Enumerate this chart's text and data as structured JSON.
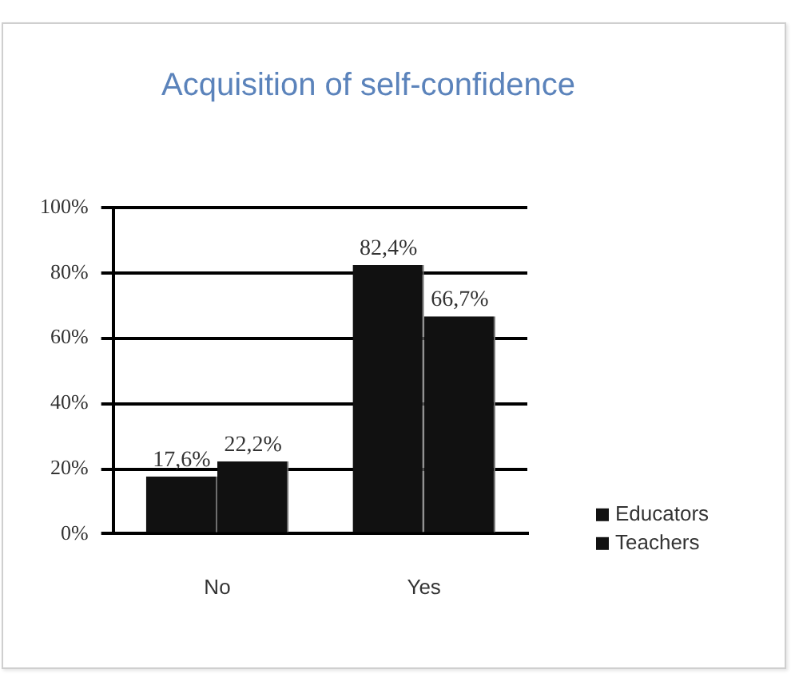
{
  "chart_data": {
    "type": "bar",
    "title": "Acquisition of self-confidence",
    "categories": [
      "No",
      "Yes"
    ],
    "series": [
      {
        "name": "Educators",
        "color": "#111111",
        "values": [
          17.6,
          82.4
        ],
        "value_labels": [
          "17,6%",
          "82,4%"
        ]
      },
      {
        "name": "Teachers",
        "color": "#111111",
        "values": [
          22.2,
          66.7
        ],
        "value_labels": [
          "22,2%",
          "66,7%"
        ]
      }
    ],
    "ylim": [
      0,
      100
    ],
    "yticks": [
      {
        "value": 0,
        "label": "0%"
      },
      {
        "value": 20,
        "label": "20%"
      },
      {
        "value": 40,
        "label": "40%"
      },
      {
        "value": 60,
        "label": "60%"
      },
      {
        "value": 80,
        "label": "80%"
      },
      {
        "value": 100,
        "label": "100%"
      }
    ],
    "grid": "y",
    "legend": "bottom right"
  }
}
